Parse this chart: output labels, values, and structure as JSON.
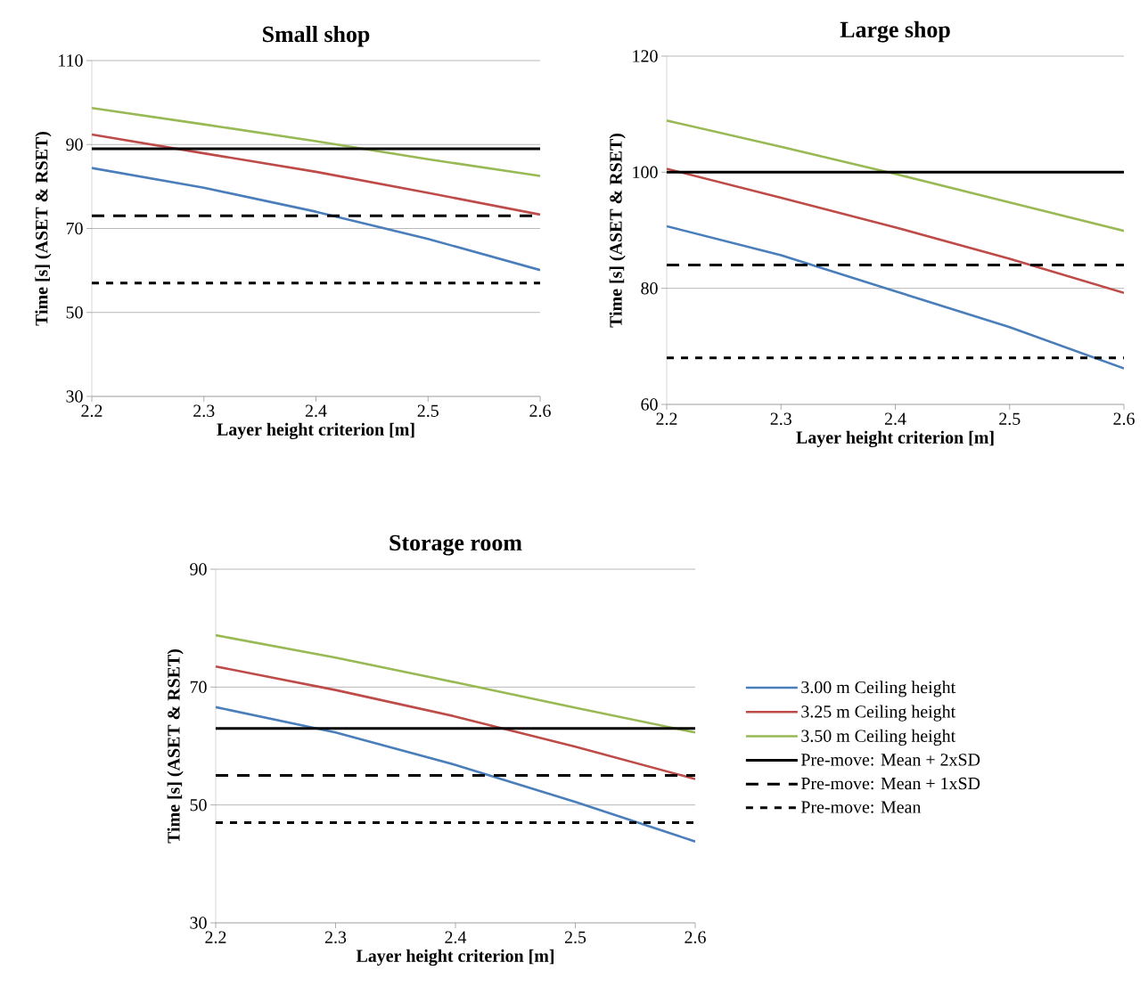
{
  "chart_data": [
    {
      "type": "line",
      "title": "Small shop",
      "xlabel": "Layer height criterion [m]",
      "ylabel": "Time [s] (ASET & RSET)",
      "x": [
        2.2,
        2.3,
        2.4,
        2.5,
        2.6
      ],
      "xlim": [
        2.2,
        2.6
      ],
      "xticks": [
        2.2,
        2.3,
        2.4,
        2.5,
        2.6
      ],
      "ylim": [
        30,
        110
      ],
      "yticks": [
        30,
        50,
        70,
        90,
        110
      ],
      "grid": "y",
      "series": [
        {
          "color": "#4a7ebb",
          "line_style": "solid",
          "values": [
            84.4,
            79.7,
            74.0,
            67.5,
            60.1
          ]
        },
        {
          "color": "#be4b48",
          "line_style": "solid",
          "values": [
            92.4,
            87.9,
            83.5,
            78.5,
            73.3
          ]
        },
        {
          "color": "#98b954",
          "line_style": "solid",
          "values": [
            98.7,
            94.8,
            90.8,
            86.5,
            82.5
          ]
        },
        {
          "color": "#000000",
          "line_style": "solid",
          "values": [
            89,
            89,
            89,
            89,
            89
          ]
        },
        {
          "color": "#000000",
          "line_style": "dashed",
          "values": [
            73,
            73,
            73,
            73,
            73
          ]
        },
        {
          "color": "#000000",
          "line_style": "dotted",
          "values": [
            57,
            57,
            57,
            57,
            57
          ]
        }
      ]
    },
    {
      "type": "line",
      "title": "Large shop",
      "xlabel": "Layer height criterion [m]",
      "ylabel": "Time [s] (ASET & RSET)",
      "x": [
        2.2,
        2.3,
        2.4,
        2.5,
        2.6
      ],
      "xlim": [
        2.2,
        2.6
      ],
      "xticks": [
        2.2,
        2.3,
        2.4,
        2.5,
        2.6
      ],
      "ylim": [
        60,
        120
      ],
      "yticks": [
        60,
        80,
        100,
        120
      ],
      "grid": "y",
      "series": [
        {
          "color": "#4a7ebb",
          "line_style": "solid",
          "values": [
            90.7,
            85.7,
            79.5,
            73.3,
            66.2
          ]
        },
        {
          "color": "#be4b48",
          "line_style": "solid",
          "values": [
            100.6,
            95.6,
            90.5,
            85.1,
            79.2
          ]
        },
        {
          "color": "#98b954",
          "line_style": "solid",
          "values": [
            108.9,
            104.4,
            99.7,
            94.8,
            89.9
          ]
        },
        {
          "color": "#000000",
          "line_style": "solid",
          "values": [
            100,
            100,
            100,
            100,
            100
          ]
        },
        {
          "color": "#000000",
          "line_style": "dashed",
          "values": [
            84,
            84,
            84,
            84,
            84
          ]
        },
        {
          "color": "#000000",
          "line_style": "dotted",
          "values": [
            68,
            68,
            68,
            68,
            68
          ]
        }
      ]
    },
    {
      "type": "line",
      "title": "Storage room",
      "xlabel": "Layer height criterion [m]",
      "ylabel": "Time [s] (ASET & RSET)",
      "x": [
        2.2,
        2.3,
        2.4,
        2.5,
        2.6
      ],
      "xlim": [
        2.2,
        2.6
      ],
      "xticks": [
        2.2,
        2.3,
        2.4,
        2.5,
        2.6
      ],
      "ylim": [
        30,
        90
      ],
      "yticks": [
        30,
        50,
        70,
        90
      ],
      "grid": "y",
      "legend": "right",
      "series": [
        {
          "name": "3.00 m Ceiling height",
          "color": "#4a7ebb",
          "line_style": "solid",
          "values": [
            66.6,
            62.3,
            56.8,
            50.5,
            43.8
          ]
        },
        {
          "name": "3.25 m Ceiling height",
          "color": "#be4b48",
          "line_style": "solid",
          "values": [
            73.5,
            69.5,
            65.0,
            59.9,
            54.4
          ]
        },
        {
          "name": "3.50 m Ceiling height",
          "color": "#98b954",
          "line_style": "solid",
          "values": [
            78.8,
            75.0,
            70.8,
            66.5,
            62.3
          ]
        },
        {
          "name": "Pre-move: Mean + 2xSD",
          "color": "#000000",
          "line_style": "solid",
          "values": [
            63,
            63,
            63,
            63,
            63
          ]
        },
        {
          "name": "Pre-move: Mean + 1xSD",
          "color": "#000000",
          "line_style": "dashed",
          "values": [
            55,
            55,
            55,
            55,
            55
          ]
        },
        {
          "name": "Pre-move: Mean",
          "color": "#000000",
          "line_style": "dotted",
          "values": [
            47,
            47,
            47,
            47,
            47
          ]
        }
      ]
    }
  ]
}
